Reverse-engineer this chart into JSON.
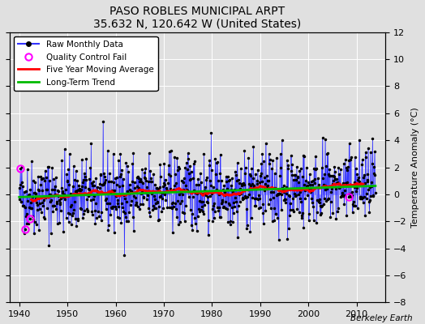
{
  "title": "PASO ROBLES MUNICIPAL ARPT",
  "subtitle": "35.632 N, 120.642 W (United States)",
  "ylabel": "Temperature Anomaly (°C)",
  "credit": "Berkeley Earth",
  "xlim": [
    1938,
    2016
  ],
  "ylim": [
    -8,
    12
  ],
  "yticks": [
    -8,
    -6,
    -4,
    -2,
    0,
    2,
    4,
    6,
    8,
    10,
    12
  ],
  "xticks": [
    1940,
    1950,
    1960,
    1970,
    1980,
    1990,
    2000,
    2010
  ],
  "start_year": 1940,
  "end_year": 2014,
  "raw_color": "#3333FF",
  "stem_color": "#8888FF",
  "ma_color": "#FF0000",
  "trend_color": "#00BB00",
  "qc_color": "#FF00FF",
  "bg_color": "#E0E0E0",
  "seed": 42
}
